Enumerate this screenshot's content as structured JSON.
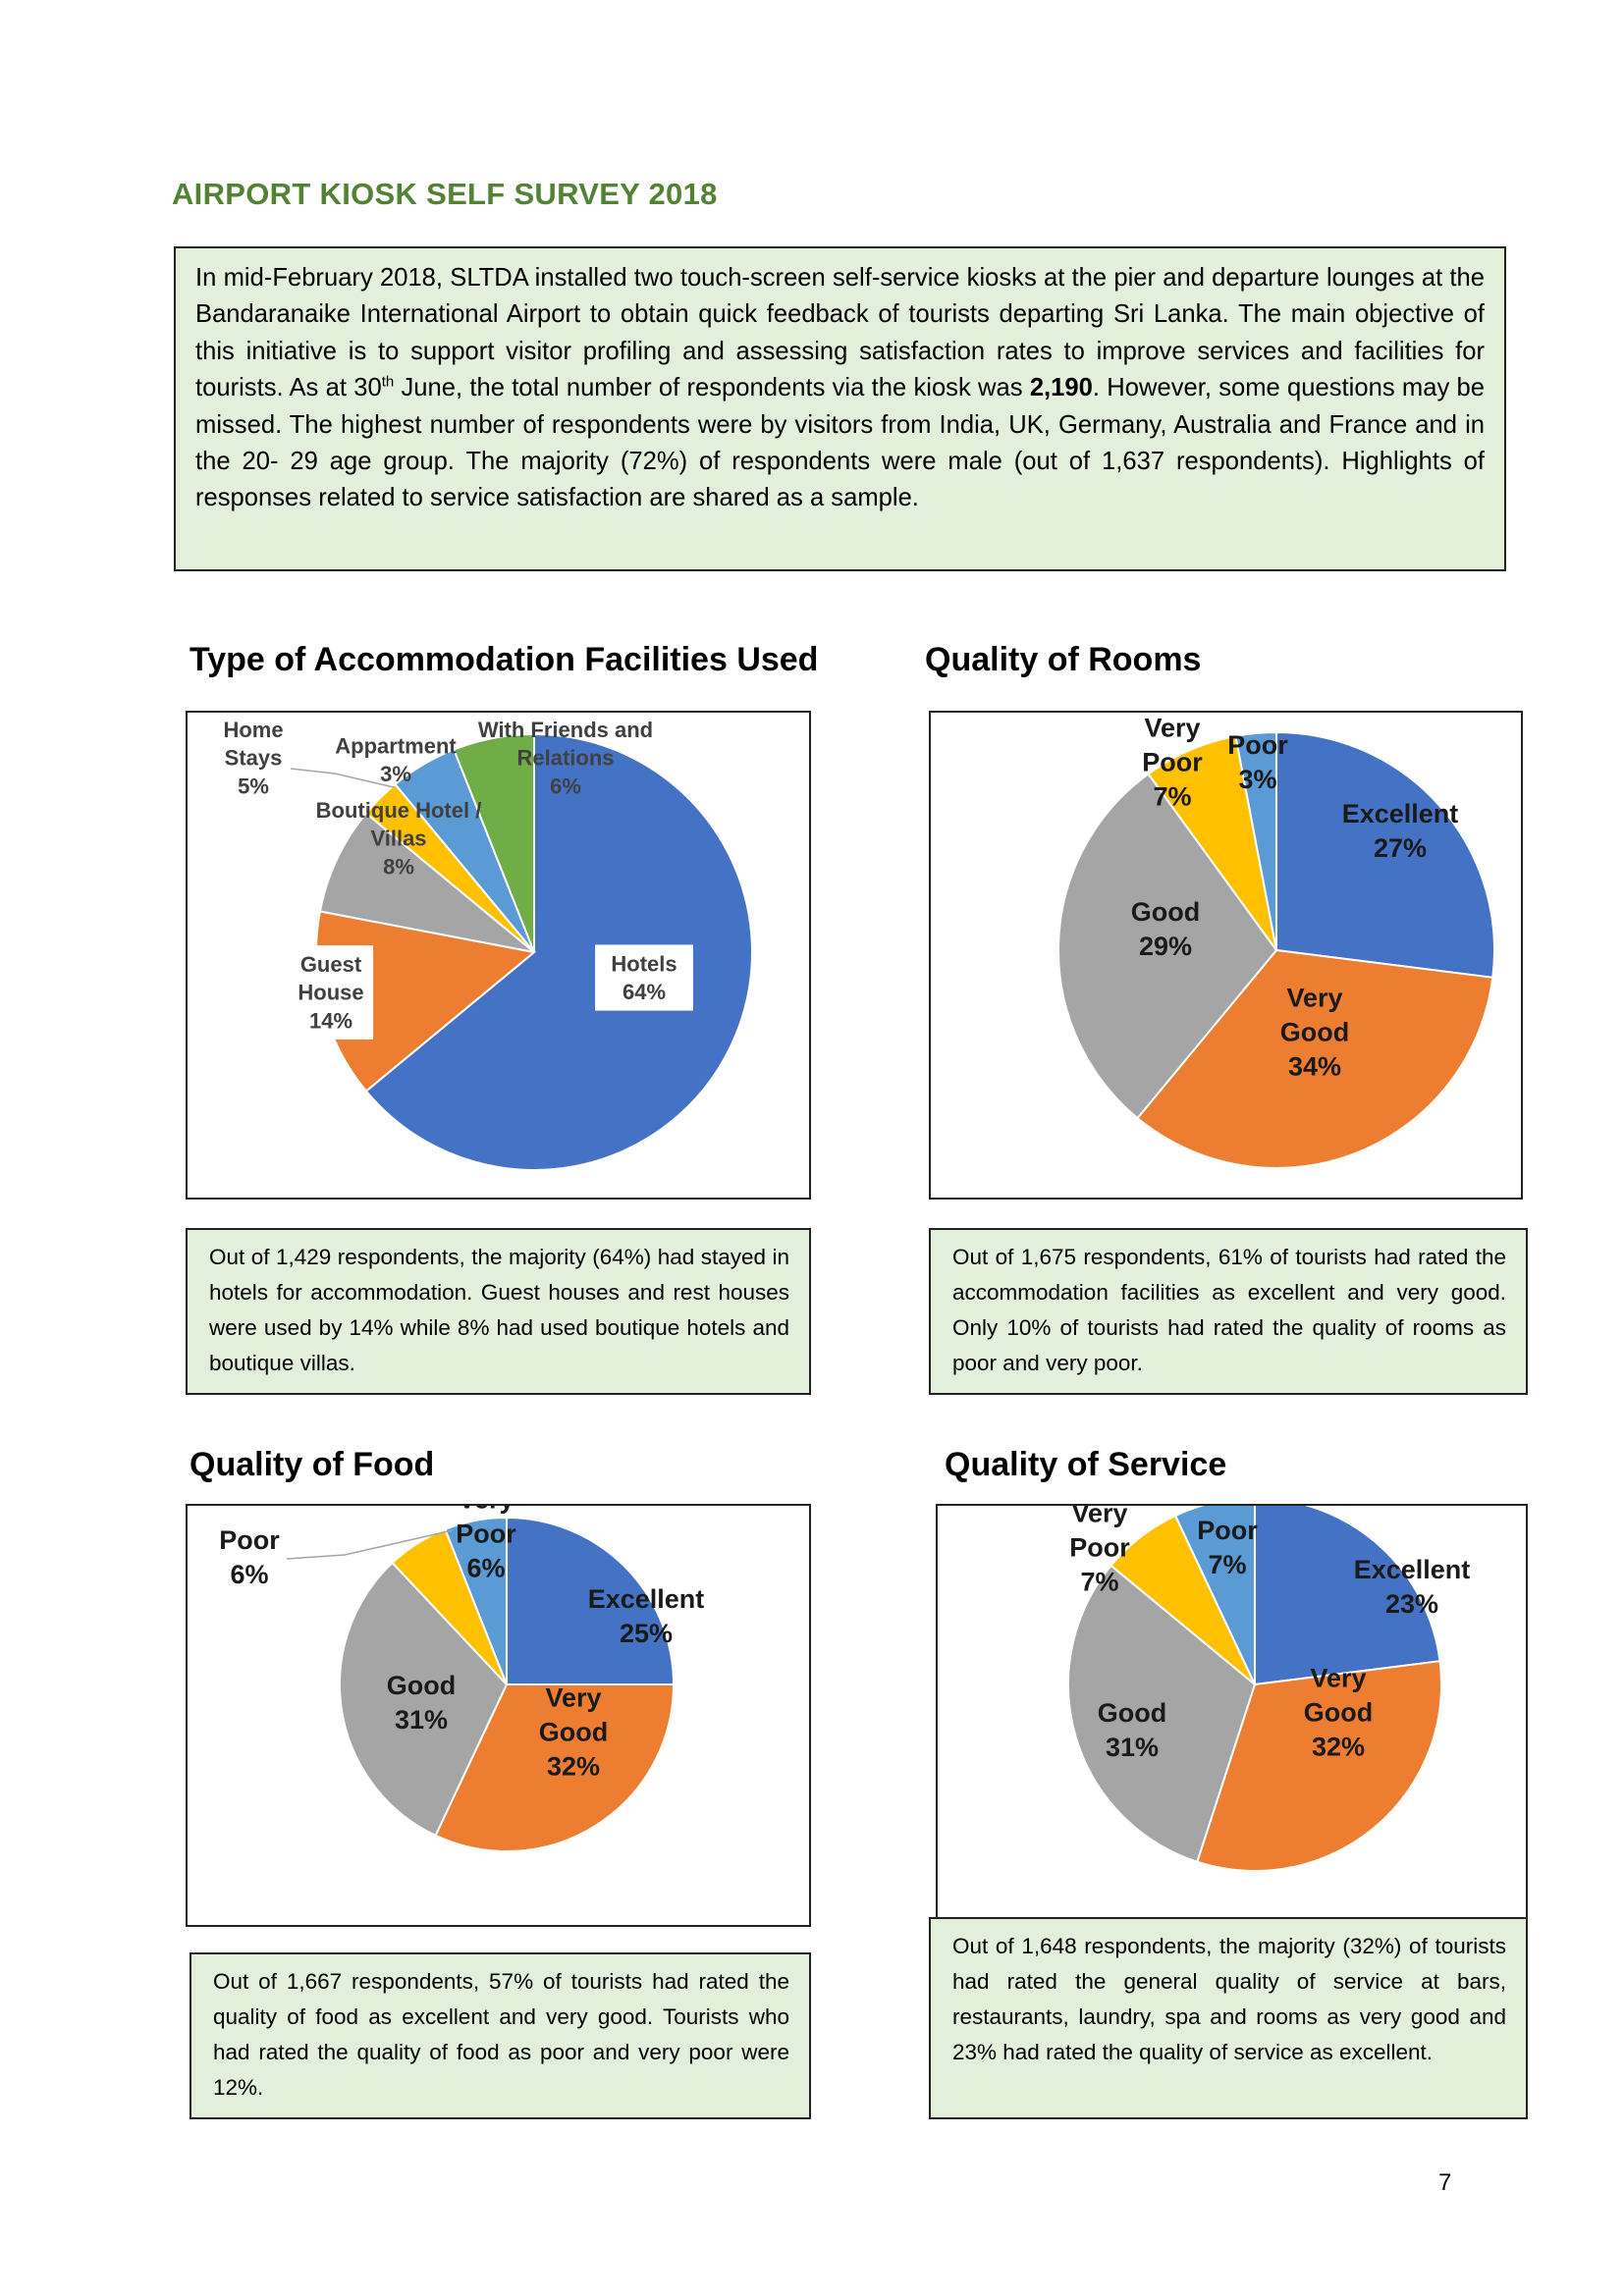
{
  "title": "AIRPORT KIOSK SELF SURVEY 2018",
  "intro": {
    "part1": "In mid-February 2018, SLTDA installed two touch-screen self-service kiosks at the pier and departure lounges at the Bandaranaike International Airport to obtain quick feedback of tourists departing Sri Lanka. The main objective of this initiative is to support visitor profiling and assessing satisfaction rates to improve services and facilities for tourists. As at 30",
    "sup": "th",
    "part2": " June, the total number of respondents via the kiosk was ",
    "bold_count": "2,190",
    "part3": ". However, some questions may be missed. The highest number of respondents were by visitors from India, UK, Germany, Australia and France and in the 20- 29 age group. The majority (72%) of respondents were male (out of 1,637 respondents). Highlights of responses related to service satisfaction are shared as a sample."
  },
  "colors": {
    "blue": "#4472c4",
    "orange": "#ed7d31",
    "gray": "#a5a5a5",
    "yellow": "#ffc000",
    "lightblue": "#5b9bd5",
    "green": "#70ad47",
    "title_green": "#548235",
    "box_fill": "#e2efda"
  },
  "sections": {
    "accommodation": {
      "title": "Type of Accommodation Facilities Used",
      "note": "Out of 1,429 respondents, the majority (64%) had stayed in hotels for accommodation. Guest houses and rest houses were used by 14% while 8% had used boutique hotels and boutique villas."
    },
    "rooms": {
      "title": "Quality of Rooms",
      "note": "Out of 1,675 respondents, 61% of tourists had rated the accommodation facilities as excellent and very good. Only 10% of tourists had rated the quality of rooms as poor and very poor."
    },
    "food": {
      "title": "Quality of Food",
      "note": "Out of 1,667 respondents, 57% of tourists had rated the quality of food as excellent and very good. Tourists who had rated the quality of food as poor and very poor were 12%."
    },
    "service": {
      "title": "Quality of Service",
      "note": "Out of 1,648 respondents, the majority (32%) of tourists had rated the general quality of service at bars, restaurants, laundry, spa and rooms as very good and 23% had rated the quality of service as excellent."
    }
  },
  "chart_data": [
    {
      "type": "pie",
      "title": "Type of Accommodation Facilities Used",
      "slices": [
        {
          "label": "Hotels",
          "value": 64,
          "color": "#4472c4",
          "text": [
            "Hotels",
            "64%"
          ]
        },
        {
          "label": "Guest House",
          "value": 14,
          "color": "#ed7d31",
          "text": [
            "Guest",
            "House",
            "14%"
          ]
        },
        {
          "label": "Boutique Hotel / Villas",
          "value": 8,
          "color": "#a5a5a5",
          "text": [
            "Boutique Hotel /",
            "Villas",
            "8%"
          ]
        },
        {
          "label": "Appartment",
          "value": 3,
          "color": "#ffc000",
          "text": [
            "Appartment",
            "3%"
          ]
        },
        {
          "label": "Home Stays",
          "value": 5,
          "color": "#5b9bd5",
          "text": [
            "Home",
            "Stays",
            "5%"
          ]
        },
        {
          "label": "With Friends and Relations",
          "value": 6,
          "color": "#70ad47",
          "text": [
            "With Friends and",
            "Relations",
            "6%"
          ]
        }
      ]
    },
    {
      "type": "pie",
      "title": "Quality of Rooms",
      "slices": [
        {
          "label": "Excellent",
          "value": 27,
          "color": "#4472c4",
          "text": [
            "Excellent",
            "27%"
          ]
        },
        {
          "label": "Very Good",
          "value": 34,
          "color": "#ed7d31",
          "text": [
            "Very",
            "Good",
            "34%"
          ]
        },
        {
          "label": "Good",
          "value": 29,
          "color": "#a5a5a5",
          "text": [
            "Good",
            "29%"
          ]
        },
        {
          "label": "Very Poor",
          "value": 7,
          "color": "#ffc000",
          "text": [
            "Very",
            "Poor",
            "7%"
          ]
        },
        {
          "label": "Poor",
          "value": 3,
          "color": "#5b9bd5",
          "text": [
            "Poor",
            "3%"
          ]
        }
      ]
    },
    {
      "type": "pie",
      "title": "Quality of Food",
      "slices": [
        {
          "label": "Excellent",
          "value": 25,
          "color": "#4472c4",
          "text": [
            "Excellent",
            "25%"
          ]
        },
        {
          "label": "Very Good",
          "value": 32,
          "color": "#ed7d31",
          "text": [
            "Very",
            "Good",
            "32%"
          ]
        },
        {
          "label": "Good",
          "value": 31,
          "color": "#a5a5a5",
          "text": [
            "Good",
            "31%"
          ]
        },
        {
          "label": "Poor",
          "value": 6,
          "color": "#ffc000",
          "text": [
            "Poor",
            "6%"
          ]
        },
        {
          "label": "Very Poor",
          "value": 6,
          "color": "#5b9bd5",
          "text": [
            "Very",
            "Poor",
            "6%"
          ]
        }
      ]
    },
    {
      "type": "pie",
      "title": "Quality of Service",
      "slices": [
        {
          "label": "Excellent",
          "value": 23,
          "color": "#4472c4",
          "text": [
            "Excellent",
            "23%"
          ]
        },
        {
          "label": "Very Good",
          "value": 32,
          "color": "#ed7d31",
          "text": [
            "Very",
            "Good",
            "32%"
          ]
        },
        {
          "label": "Good",
          "value": 31,
          "color": "#a5a5a5",
          "text": [
            "Good",
            "31%"
          ]
        },
        {
          "label": "Very Poor",
          "value": 7,
          "color": "#ffc000",
          "text": [
            "Very",
            "Poor",
            "7%"
          ]
        },
        {
          "label": "Poor",
          "value": 7,
          "color": "#5b9bd5",
          "text": [
            "Poor",
            "7%"
          ]
        }
      ]
    }
  ],
  "page_number": "7"
}
